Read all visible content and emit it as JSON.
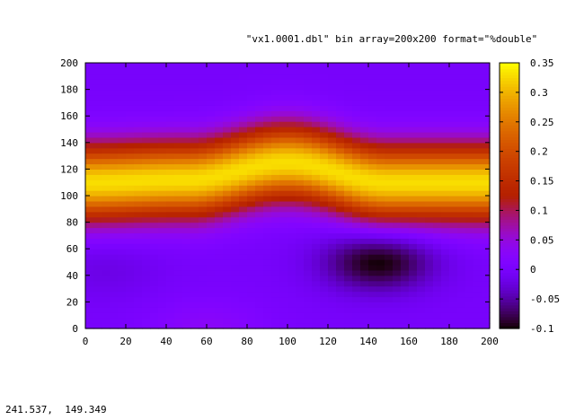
{
  "chart_data": {
    "type": "heatmap",
    "title": "\"vx1.0001.dbl\" bin array=200x200 format=\"%double\"",
    "xlabel": "",
    "ylabel": "",
    "xlim": [
      0,
      200
    ],
    "ylim": [
      0,
      200
    ],
    "x_ticks": [
      "0",
      "20",
      "40",
      "60",
      "80",
      "100",
      "120",
      "140",
      "160",
      "180",
      "200"
    ],
    "y_ticks": [
      "0",
      "20",
      "40",
      "60",
      "80",
      "100",
      "120",
      "140",
      "160",
      "180",
      "200"
    ],
    "grid": false,
    "colorbar": {
      "range": [
        -0.1,
        0.35
      ],
      "ticks": [
        "-0.1",
        "-0.05",
        "0",
        "0.05",
        "0.1",
        "0.15",
        "0.2",
        "0.25",
        "0.3",
        "0.35"
      ],
      "palette": "gnuplot black-purple-red-orange-yellow"
    },
    "field": {
      "background_value": 0.0,
      "band_center_y": [
        {
          "x": 0,
          "y": 110
        },
        {
          "x": 50,
          "y": 112
        },
        {
          "x": 100,
          "y": 125
        },
        {
          "x": 150,
          "y": 110
        },
        {
          "x": 200,
          "y": 110
        }
      ],
      "band_peak_value": 0.33,
      "band_half_width": 35,
      "features": [
        {
          "kind": "min",
          "x": 145,
          "y": 50,
          "value": -0.1
        },
        {
          "kind": "max",
          "x": 60,
          "y": 0,
          "value": 0.03
        },
        {
          "kind": "min",
          "x": 10,
          "y": 45,
          "value": -0.02
        }
      ]
    }
  },
  "status_bar": {
    "coordinates": "241.537,  149.349"
  },
  "colors": {
    "frame": "#000000",
    "background": "#ffffff"
  }
}
